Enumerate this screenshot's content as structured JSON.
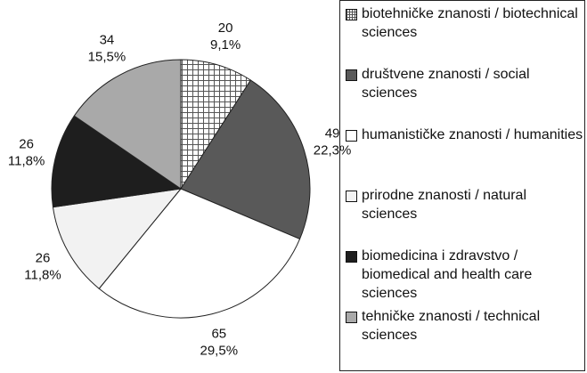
{
  "chart_data": {
    "type": "pie",
    "categories": [
      "biotehničke znanosti / biotechnical sciences",
      "društvene znanosti / social sciences",
      "humanističke znanosti / humanities",
      "prirodne znanosti / natural sciences",
      "biomedicina i zdravstvo / biomedical and health care sciences",
      "tehničke znanosti / technical sciences"
    ],
    "values": [
      20,
      49,
      65,
      26,
      26,
      34
    ],
    "percent_labels": [
      "9,1%",
      "22,3%",
      "29,5%",
      "11,8%",
      "11,8%",
      "15,5%"
    ],
    "colors": [
      "#ffffff",
      "#595959",
      "#ffffff",
      "#f2f2f2",
      "#1e1e1e",
      "#a9a9a9"
    ],
    "patterns": [
      "crosshatch",
      "solid",
      "solid",
      "solid",
      "solid",
      "solid"
    ],
    "legend": "right"
  }
}
